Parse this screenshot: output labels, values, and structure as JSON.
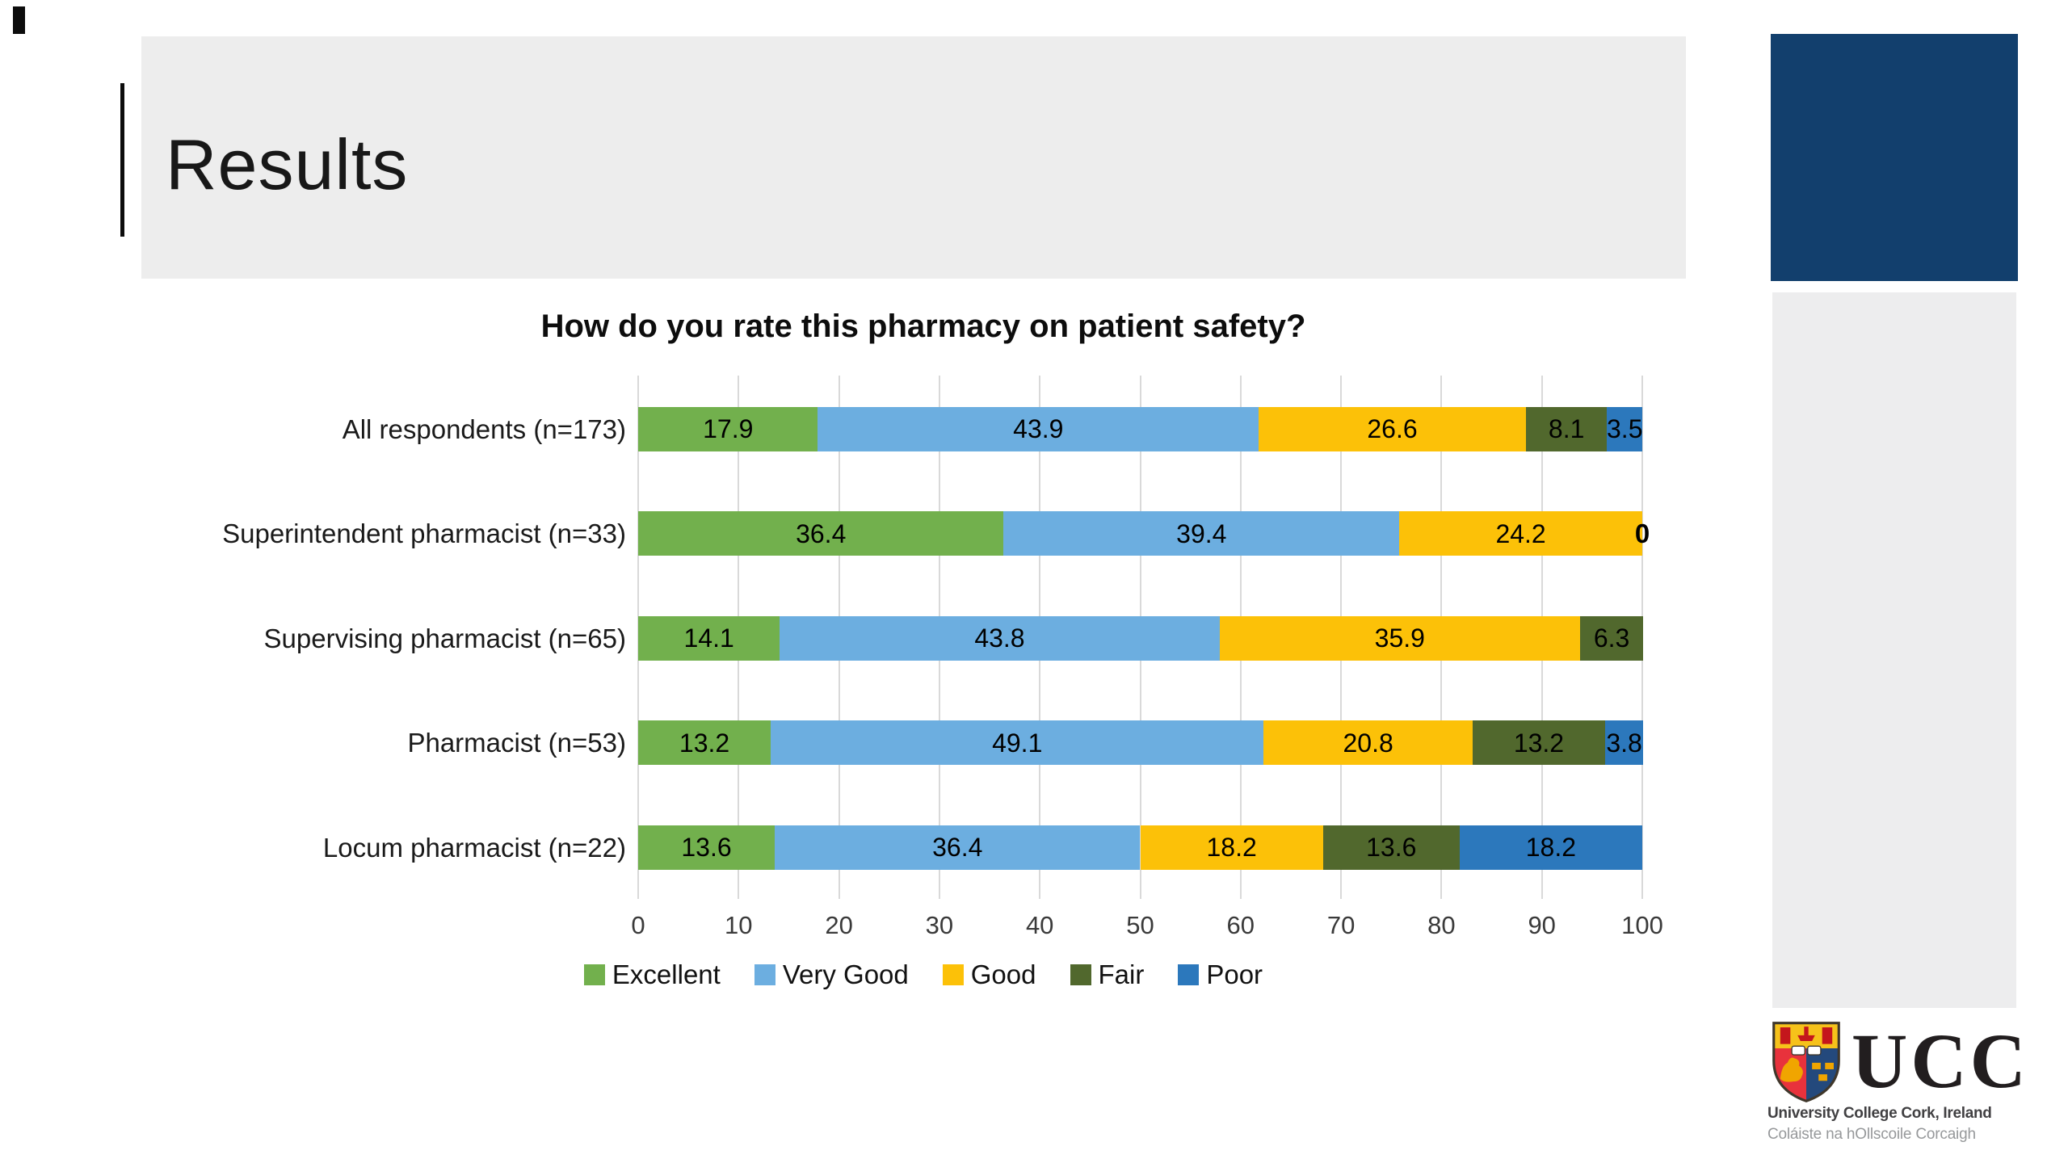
{
  "slide": {
    "title": "Results"
  },
  "theme": {
    "header_bg": "#ededed",
    "accent_block": "#123f6d",
    "side_panel_bg": "#ededee",
    "grid_color": "#d9d9d9",
    "data_label_color": "#000000"
  },
  "chart_data": {
    "type": "bar",
    "orientation": "horizontal",
    "stacked": true,
    "title": "How do you rate this pharmacy on patient safety?",
    "categories": [
      "All respondents (n=173)",
      "Superintendent pharmacist (n=33)",
      "Supervising pharmacist (n=65)",
      "Pharmacist (n=53)",
      "Locum pharmacist (n=22)"
    ],
    "series": [
      {
        "name": "Excellent",
        "color": "#72b04d",
        "values": [
          17.9,
          36.4,
          14.1,
          13.2,
          13.6
        ]
      },
      {
        "name": "Very Good",
        "color": "#6caee0",
        "values": [
          43.9,
          39.4,
          43.8,
          49.1,
          36.4
        ]
      },
      {
        "name": "Good",
        "color": "#fcc108",
        "values": [
          26.6,
          24.2,
          35.9,
          20.8,
          18.2
        ]
      },
      {
        "name": "Fair",
        "color": "#51682d",
        "values": [
          8.1,
          0,
          6.3,
          13.2,
          13.6
        ]
      },
      {
        "name": "Poor",
        "color": "#2c78bc",
        "values": [
          3.5,
          0,
          0,
          3.8,
          18.2
        ]
      }
    ],
    "xlim": [
      0,
      100
    ],
    "x_ticks": [
      0,
      10,
      20,
      30,
      40,
      50,
      60,
      70,
      80,
      90,
      100
    ],
    "grid": true,
    "legend_position": "bottom",
    "data_labels": true,
    "extra_labels": [
      {
        "category_index": 1,
        "text": "0",
        "x": 100
      }
    ]
  },
  "logo": {
    "acronym": "UCC",
    "line1": "University College Cork, Ireland",
    "line2": "Coláiste na hOllscoile Corcaigh"
  }
}
